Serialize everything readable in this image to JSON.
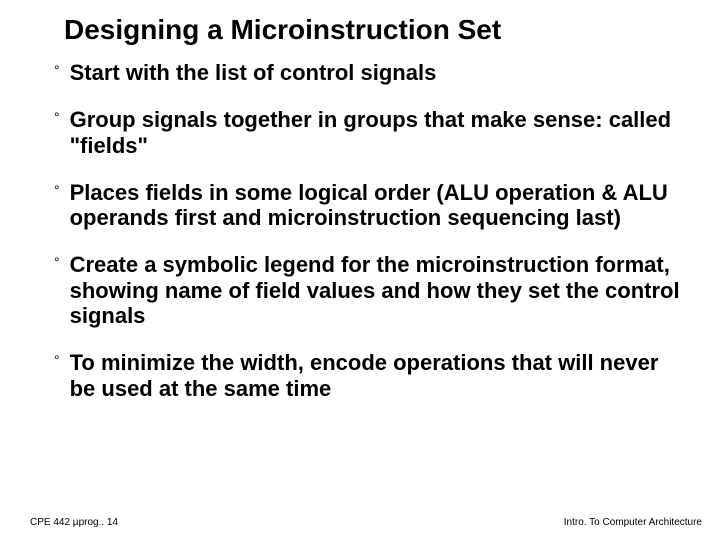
{
  "slide": {
    "title": "Designing a Microinstruction Set",
    "title_fontsize": 28,
    "title_color": "#000000",
    "background_color": "#ffffff",
    "bullet_fontsize": 22,
    "bullet_color": "#000000",
    "bullet_marker": "°",
    "bullets": [
      "Start with the list of control signals",
      "Group signals together in groups that make sense: called \"fields\"",
      "Places fields in some logical order (ALU operation & ALU operands first and microinstruction sequencing last)",
      "Create a symbolic legend for the microinstruction format, showing name of field values and how they set the control signals",
      "To minimize the width, encode operations that will never be used at the same time"
    ],
    "footer": {
      "left": "CPE 442 µprog.. 14",
      "right": "Intro. To Computer Architecture",
      "fontsize": 10,
      "color": "#000000"
    }
  }
}
